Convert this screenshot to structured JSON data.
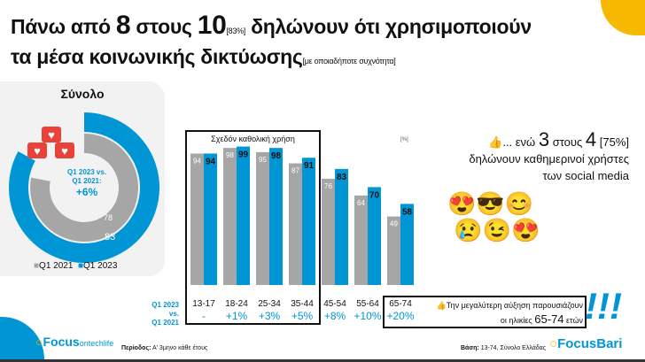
{
  "title": {
    "line1_a": "Πάνω από ",
    "line1_b": "8",
    "line1_c": " στους ",
    "line1_d": "10",
    "line1_e": "[83%]",
    "line1_f": " δηλώνουν ότι χρησιμοποιούν",
    "line2_a": "τα μέσα κοινωνικής δικτύωσης",
    "line2_b": "[με οποιαδήποτε συχνότητα]"
  },
  "donut": {
    "title": "Σύνολο",
    "q2021": 78,
    "q2023": 83,
    "center_l1": "Q1 2023 vs.",
    "center_l2": "Q1 2021:",
    "center_change": "+6%",
    "legend": [
      "Q1 2021",
      "Q1 2023"
    ]
  },
  "colors": {
    "q2021": "#a6a6a6",
    "q2023": "#0096d6",
    "accent": "#f6b800"
  },
  "chart_data": {
    "type": "bar",
    "categories": [
      "13-17",
      "18-24",
      "25-34",
      "35-44",
      "45-54",
      "55-64",
      "65-74"
    ],
    "series": [
      {
        "name": "Q1 2021",
        "values": [
          94,
          98,
          95,
          87,
          76,
          64,
          49
        ]
      },
      {
        "name": "Q1 2023",
        "values": [
          94,
          99,
          98,
          91,
          83,
          70,
          58
        ]
      }
    ],
    "changes": [
      "-",
      "+1%",
      "+3%",
      "+5%",
      "+8%",
      "+10%",
      "+20%"
    ],
    "change_label": [
      "Q1 2023",
      "vs.",
      "Q1 2021"
    ],
    "box_label": "Σχεδόν καθολική χρήση",
    "unit": "[%]",
    "ylim": [
      0,
      100
    ]
  },
  "daily": {
    "a": "... ενώ ",
    "b": "3",
    "c": " στους ",
    "d": "4",
    "e": " [75%]",
    "line2": "δηλώνουν καθημερινοί χρήστες",
    "line3": "των social media"
  },
  "note": {
    "line1": "Την μεγαλύτερη αύξηση παρουσιάζουν",
    "line2a": "οι ηλικίες ",
    "line2b": "65-74",
    "line2c": " ετών"
  },
  "footer": {
    "period_label": "Περίοδος:",
    "period": " Α' 3μηνο κάθε έτους",
    "base_label": "Βάση:",
    "base": " 13-74, Σύνολο Ελλάδας",
    "logo_left": "Focus",
    "logo_left2": "ontechlife",
    "logo_right": "FocusBari"
  }
}
